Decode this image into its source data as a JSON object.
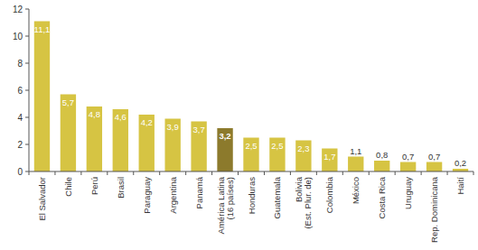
{
  "chart_data": {
    "type": "bar",
    "categories": [
      "El Salvador",
      "Chile",
      "Perú",
      "Brasil",
      "Paraguay",
      "Argentina",
      "Panamá",
      "América Latina (16 países)",
      "Honduras",
      "Guatemala",
      "Bolivia (Est. Plur. de)",
      "Colombia",
      "México",
      "Costa Rica",
      "Uruguay",
      "Rep. Dominicana",
      "Haití"
    ],
    "values": [
      11.1,
      5.7,
      4.8,
      4.6,
      4.2,
      3.9,
      3.7,
      3.2,
      2.5,
      2.5,
      2.3,
      1.7,
      1.1,
      0.8,
      0.7,
      0.7,
      0.2
    ],
    "value_labels": [
      "11,1",
      "5,7",
      "4,8",
      "4,6",
      "4,2",
      "3,9",
      "3,7",
      "3,2",
      "2,5",
      "2,5",
      "2,3",
      "1,7",
      "1,1",
      "0,8",
      "0,7",
      "0,7",
      "0,2"
    ],
    "colors": [
      "#d6c443",
      "#d6c443",
      "#d6c443",
      "#d6c443",
      "#d6c443",
      "#d6c443",
      "#d6c443",
      "#8c7a2c",
      "#d6c443",
      "#d6c443",
      "#d6c443",
      "#d6c443",
      "#d6c443",
      "#d6c443",
      "#d6c443",
      "#d6c443",
      "#d6c443"
    ],
    "ylim": [
      0,
      12
    ],
    "yticks": [
      0,
      2,
      4,
      6,
      8,
      10,
      12
    ],
    "grid": false,
    "data_labels": true
  }
}
